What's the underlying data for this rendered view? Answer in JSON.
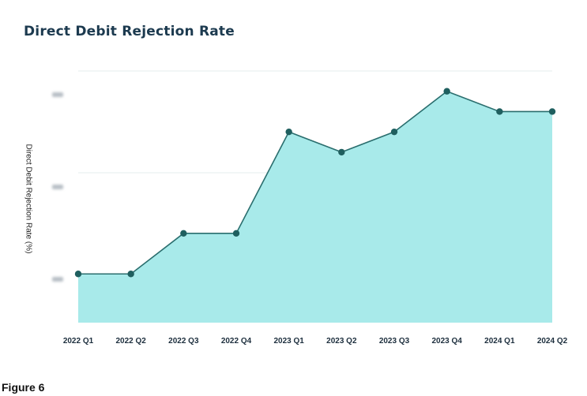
{
  "chart_data": {
    "type": "area",
    "title": "Direct Debit Rejection Rate",
    "ylabel": "Direct Debit Rejection Rate (%)",
    "xlabel": "",
    "categories": [
      "2022 Q1",
      "2022 Q2",
      "2022 Q3",
      "2022 Q4",
      "2023 Q1",
      "2023 Q2",
      "2023 Q3",
      "2023 Q4",
      "2024 Q1",
      "2024 Q2"
    ],
    "values": [
      1.0,
      1.0,
      1.4,
      1.4,
      2.4,
      2.2,
      2.4,
      2.8,
      2.6,
      2.6
    ],
    "ylim": [
      0.52,
      3.0
    ],
    "ytick_values": [
      1.0,
      2.0,
      3.0
    ],
    "ytick_labels_obscured": true,
    "grid": true,
    "colors": {
      "fill": "#a8eaea",
      "line": "#2a6e6e",
      "marker": "#1f5f5f",
      "grid": "#e6ecee"
    }
  },
  "caption": "Figure 6"
}
